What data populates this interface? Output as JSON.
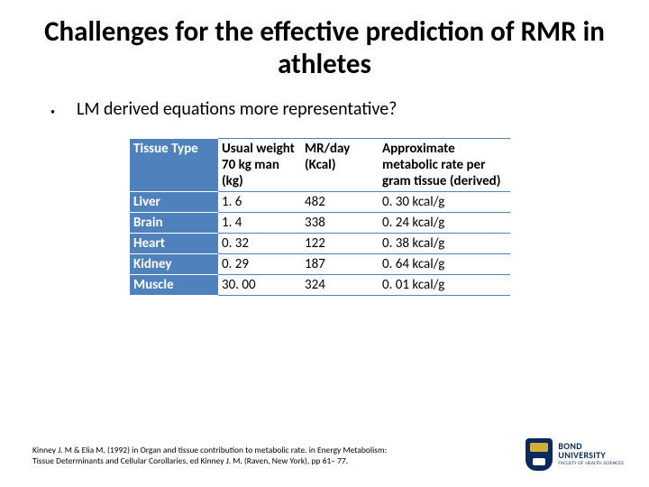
{
  "title": "Challenges for the effective prediction of RMR in athletes",
  "bullet": "LM derived equations more representative?",
  "table": {
    "columns": [
      "Tissue Type",
      "Usual weight 70 kg man (kg)",
      "MR/day (Kcal)",
      "Approximate metabolic rate per gram tissue (derived)"
    ],
    "col_widths_class": [
      "c0",
      "c1",
      "c2",
      "c3"
    ],
    "rows": [
      [
        "Liver",
        "1. 6",
        "482",
        "0. 30 kcal/g"
      ],
      [
        "Brain",
        "1. 4",
        "338",
        "0. 24 kcal/g"
      ],
      [
        "Heart",
        "0. 32",
        "122",
        "0. 38 kcal/g"
      ],
      [
        "Kidney",
        "0. 29",
        "187",
        "0. 64 kcal/g"
      ],
      [
        "Muscle",
        "30. 00",
        "324",
        "0. 01 kcal/g"
      ]
    ],
    "header_bg": "#4f81bd",
    "header_fg": "#ffffff",
    "border_color": "#4f81bd",
    "font_size": 15
  },
  "citation_line1": "Kinney J. M & Elia M. (1992) in Organ and tissue contribution to metabolic rate. in Energy Metabolism:",
  "citation_line2": "Tissue Determinants and Cellular Corollaries, ed Kinney J. M. (Raven, New York), pp 61– 77.",
  "logo": {
    "university": "BOND",
    "university_sub": "UNIVERSITY",
    "faculty": "FACULTY OF HEALTH SCIENCES"
  },
  "colors": {
    "background": "#ffffff",
    "text": "#000000",
    "accent": "#4f81bd",
    "brand": "#0a2a5c"
  }
}
